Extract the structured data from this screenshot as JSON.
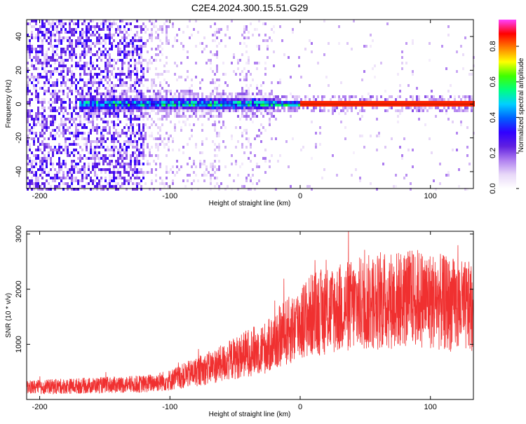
{
  "chart_data": [
    {
      "type": "heatmap",
      "title": "C2E4.2024.300.15.51.G29",
      "xlabel": "Height of straight line (km)",
      "ylabel": "Frequency (Hz)",
      "xlim": [
        -210,
        133
      ],
      "ylim": [
        -50,
        50
      ],
      "xticks": [
        -200,
        -100,
        0,
        100
      ],
      "yticks": [
        -40,
        -20,
        0,
        20,
        40
      ],
      "colorbar": {
        "label": "Normalized spectral amplitude",
        "range": [
          0,
          0.95
        ],
        "ticks": [
          0.0,
          0.2,
          0.4,
          0.6,
          0.8
        ],
        "colormap": [
          "#ffffff",
          "#e8d8f8",
          "#b080f0",
          "#6020e0",
          "#3000ff",
          "#0060ff",
          "#00d0ff",
          "#00ff80",
          "#40ff00",
          "#ffff00",
          "#ff8000",
          "#ff0000",
          "#ff40ff"
        ]
      },
      "ridge": {
        "frequency": 0,
        "x_range": [
          -170,
          133
        ]
      },
      "grid": false
    },
    {
      "type": "line",
      "xlabel": "Height of straight line (km)",
      "ylabel": "SNR (10 * v/v)",
      "xlim": [
        -210,
        133
      ],
      "ylim": [
        0,
        3050
      ],
      "xticks": [
        -200,
        -100,
        0,
        100
      ],
      "yticks": [
        1000,
        2000,
        3000
      ],
      "line_color": "#f03030",
      "trend": {
        "x": [
          -210,
          -180,
          -150,
          -120,
          -100,
          -80,
          -60,
          -40,
          -25,
          -15,
          -5,
          0,
          10,
          30,
          50,
          70,
          90,
          110,
          133
        ],
        "y": [
          220,
          240,
          260,
          280,
          350,
          500,
          650,
          850,
          950,
          1150,
          1300,
          1400,
          1550,
          1650,
          1750,
          1800,
          1850,
          1750,
          1650
        ]
      },
      "noise_amplitude": [
        120,
        900
      ],
      "grid": false
    }
  ]
}
